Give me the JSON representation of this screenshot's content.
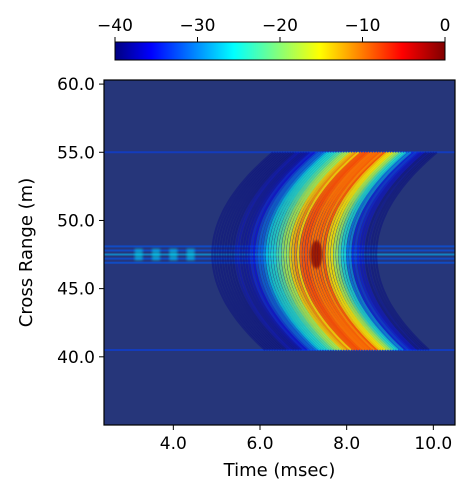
{
  "chart_data": {
    "type": "heatmap",
    "colormap": "jet",
    "title": "",
    "xlabel": "Time (msec)",
    "ylabel": "Cross Range (m)",
    "xlim": [
      2.4,
      10.5
    ],
    "ylim": [
      35.0,
      60.3
    ],
    "xticks": [
      4.0,
      6.0,
      8.0,
      10.0
    ],
    "xtick_labels": [
      "4.0",
      "6.0",
      "8.0",
      "10.0"
    ],
    "yticks": [
      40.0,
      45.0,
      50.0,
      55.0,
      60.0
    ],
    "ytick_labels": [
      "40.0",
      "45.0",
      "50.0",
      "55.0",
      "60.0"
    ],
    "colorbar": {
      "location": "top",
      "range": [
        -40,
        0
      ],
      "ticks": [
        -40,
        -30,
        -20,
        -10,
        0
      ],
      "tick_labels": [
        "−40",
        "−30",
        "−20",
        "−10",
        "0"
      ]
    },
    "background_value_db": -40,
    "features": [
      {
        "name": "curved-signature",
        "cross_range_extent": [
          40.5,
          55.0
        ],
        "time_at_apex": 7.3,
        "apex_cross_range": 47.5,
        "time_at_ends": 8.7,
        "peak_value_db": 0,
        "typical_value_db": -12
      },
      {
        "name": "horizontal-streak",
        "cross_range": 47.5,
        "time_extent": [
          2.4,
          10.5
        ],
        "typical_value_db": -32
      }
    ]
  },
  "colors": {
    "background": "#26367a",
    "jet_stops": [
      "#000080",
      "#0000ff",
      "#00ffff",
      "#ffff00",
      "#ff0000",
      "#800000"
    ]
  }
}
